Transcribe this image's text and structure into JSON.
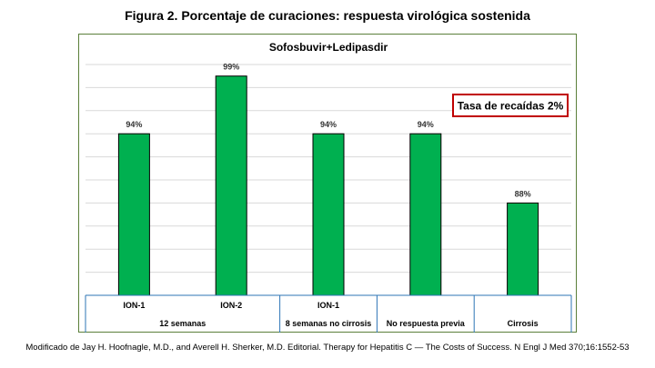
{
  "figure_title": "Figura 2. Porcentaje de curaciones: respuesta virológica sostenida",
  "footer": "Modificado de Jay H. Hoofnagle, M.D., and Averell H. Sherker, M.D. Editorial. Therapy for Hepatitis C — The Costs of Success. N Engl J Med 370;16:1552-53",
  "colors": {
    "bar": "#00b050",
    "bar_edge": "#000000",
    "callout_border": "#c00000",
    "frame": "#5b7f3a",
    "grid": "#d9d9d9"
  },
  "chart_data": {
    "type": "bar",
    "title": "Sofosbuvir+Ledipasdir",
    "categories": [
      "ION-1",
      "ION-2",
      "ION-1",
      "",
      ""
    ],
    "values": [
      94,
      99,
      94,
      94,
      88
    ],
    "value_labels": [
      "94%",
      "99%",
      "94%",
      "94%",
      "88%"
    ],
    "groups": [
      {
        "label": "12 semanas",
        "span": 2
      },
      {
        "label": "8 semanas no cirrosis",
        "span": 1
      },
      {
        "label": "No respuesta previa",
        "span": 1
      },
      {
        "label": "Cirrosis",
        "span": 1
      }
    ],
    "annotation": "Tasa de recaídas 2%",
    "ylim": [
      80,
      100
    ],
    "grid": true,
    "legend": "none"
  }
}
